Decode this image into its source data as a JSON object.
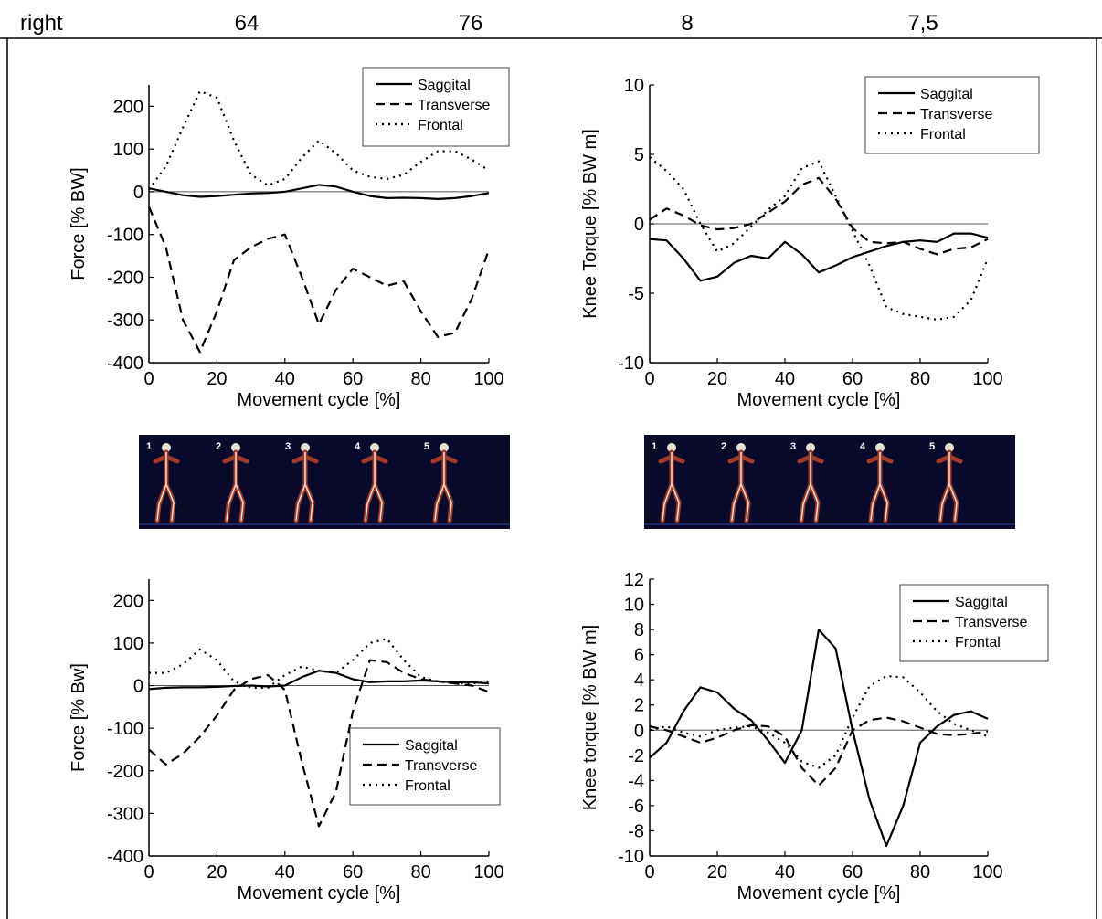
{
  "header_row": [
    "right",
    "64",
    "76",
    "8",
    "7,5"
  ],
  "figure_labels": [
    "1",
    "2",
    "3",
    "4",
    "5"
  ],
  "chart_data": [
    {
      "type": "line",
      "xlabel": "Movement cycle [%]",
      "ylabel": "Force [% BW]",
      "legend": "upper right",
      "x": [
        0,
        5,
        10,
        15,
        20,
        25,
        30,
        35,
        40,
        45,
        50,
        55,
        60,
        65,
        70,
        75,
        80,
        85,
        90,
        95,
        100
      ],
      "xlim": [
        0,
        100
      ],
      "xticks": [
        0,
        20,
        40,
        60,
        80,
        100
      ],
      "ylim": [
        -400,
        250
      ],
      "yticks": [
        -400,
        -300,
        -200,
        -100,
        0,
        100,
        200
      ],
      "series": [
        {
          "name": "Saggital",
          "color": "#000000",
          "dash": "solid",
          "values": [
            8,
            0,
            -8,
            -12,
            -10,
            -7,
            -4,
            -3,
            0,
            8,
            16,
            12,
            0,
            -10,
            -15,
            -14,
            -15,
            -17,
            -15,
            -10,
            -3
          ]
        },
        {
          "name": "Transverse",
          "color": "#000000",
          "dash": "dashed",
          "values": [
            -35,
            -130,
            -300,
            -375,
            -280,
            -160,
            -130,
            -110,
            -100,
            -200,
            -310,
            -230,
            -180,
            -200,
            -220,
            -210,
            -280,
            -340,
            -330,
            -250,
            -135
          ]
        },
        {
          "name": "Frontal",
          "color": "#000000",
          "dash": "dotted",
          "values": [
            5,
            60,
            150,
            235,
            220,
            120,
            40,
            15,
            30,
            80,
            120,
            90,
            50,
            35,
            30,
            40,
            70,
            95,
            95,
            75,
            50
          ]
        }
      ]
    },
    {
      "type": "line",
      "xlabel": "Movement cycle [%]",
      "ylabel": "Knee Torque [% BW m]",
      "legend": "upper right",
      "x": [
        0,
        5,
        10,
        15,
        20,
        25,
        30,
        35,
        40,
        45,
        50,
        55,
        60,
        65,
        70,
        75,
        80,
        85,
        90,
        95,
        100
      ],
      "xlim": [
        0,
        100
      ],
      "xticks": [
        0,
        20,
        40,
        60,
        80,
        100
      ],
      "ylim": [
        -10,
        10
      ],
      "yticks": [
        -10,
        -5,
        0,
        5,
        10
      ],
      "series": [
        {
          "name": "Saggital",
          "color": "#000000",
          "dash": "solid",
          "values": [
            -1.1,
            -1.2,
            -2.5,
            -4.1,
            -3.8,
            -2.8,
            -2.3,
            -2.5,
            -1.3,
            -2.2,
            -3.5,
            -3,
            -2.4,
            -2,
            -1.6,
            -1.3,
            -1.2,
            -1.3,
            -0.7,
            -0.7,
            -1
          ]
        },
        {
          "name": "Transverse",
          "color": "#000000",
          "dash": "dashed",
          "values": [
            0.3,
            1.1,
            0.6,
            -0.1,
            -0.4,
            -0.3,
            0,
            0.8,
            1.6,
            2.8,
            3.3,
            1.8,
            -0.3,
            -1.3,
            -1.4,
            -1.3,
            -1.8,
            -2.2,
            -1.8,
            -1.7,
            -1.1
          ]
        },
        {
          "name": "Frontal",
          "color": "#000000",
          "dash": "dotted",
          "values": [
            4.8,
            3.8,
            2.5,
            0,
            -2,
            -1.4,
            -0.2,
            1,
            2,
            4,
            4.5,
            2,
            -0.5,
            -3,
            -6,
            -6.5,
            -6.7,
            -6.9,
            -6.7,
            -5.5,
            -2.5
          ]
        }
      ]
    },
    {
      "type": "line",
      "xlabel": "Movement cycle [%]",
      "ylabel": "Force [% Bw]",
      "legend": "lower right",
      "x": [
        0,
        5,
        10,
        15,
        20,
        25,
        30,
        35,
        40,
        45,
        50,
        55,
        60,
        65,
        70,
        75,
        80,
        85,
        90,
        95,
        100
      ],
      "xlim": [
        0,
        100
      ],
      "xticks": [
        0,
        20,
        40,
        60,
        80,
        100
      ],
      "ylim": [
        -400,
        250
      ],
      "yticks": [
        -400,
        -300,
        -200,
        -100,
        0,
        100,
        200
      ],
      "series": [
        {
          "name": "Saggital",
          "color": "#000000",
          "dash": "solid",
          "values": [
            -8,
            -5,
            -4,
            -4,
            -3,
            -1,
            0,
            -2,
            0,
            20,
            35,
            30,
            15,
            8,
            10,
            10,
            12,
            10,
            8,
            8,
            5
          ]
        },
        {
          "name": "Transverse",
          "color": "#000000",
          "dash": "dashed",
          "values": [
            -150,
            -185,
            -160,
            -120,
            -70,
            -10,
            15,
            25,
            -10,
            -180,
            -330,
            -250,
            -60,
            60,
            55,
            30,
            15,
            10,
            5,
            0,
            -15
          ]
        },
        {
          "name": "Frontal",
          "color": "#000000",
          "dash": "dotted",
          "values": [
            30,
            30,
            50,
            85,
            60,
            10,
            -5,
            -5,
            25,
            45,
            35,
            30,
            60,
            100,
            110,
            60,
            20,
            10,
            5,
            5,
            10
          ]
        }
      ]
    },
    {
      "type": "line",
      "xlabel": "Movement cycle [%]",
      "ylabel": "Knee torque [% BW m]",
      "legend": "upper right",
      "x": [
        0,
        5,
        10,
        15,
        20,
        25,
        30,
        35,
        40,
        45,
        50,
        55,
        60,
        65,
        70,
        75,
        80,
        85,
        90,
        95,
        100
      ],
      "xlim": [
        0,
        100
      ],
      "xticks": [
        0,
        20,
        40,
        60,
        80,
        100
      ],
      "ylim": [
        -10,
        12
      ],
      "yticks": [
        -10,
        -8,
        -6,
        -4,
        -2,
        0,
        2,
        4,
        6,
        8,
        10,
        12
      ],
      "series": [
        {
          "name": "Saggital",
          "color": "#000000",
          "dash": "solid",
          "values": [
            -2.2,
            -1,
            1.5,
            3.4,
            3,
            1.7,
            0.8,
            -0.8,
            -2.6,
            0,
            8,
            6.5,
            0,
            -5.5,
            -9.2,
            -6,
            -1,
            0.3,
            1.2,
            1.5,
            0.9
          ]
        },
        {
          "name": "Transverse",
          "color": "#000000",
          "dash": "dashed",
          "values": [
            0.3,
            0,
            -0.5,
            -1,
            -0.6,
            0,
            0.4,
            0.3,
            -0.5,
            -3,
            -4.4,
            -3,
            0,
            0.8,
            1,
            0.7,
            0.2,
            -0.3,
            -0.4,
            -0.3,
            -0.1
          ]
        },
        {
          "name": "Frontal",
          "color": "#000000",
          "dash": "dotted",
          "values": [
            0,
            0.3,
            -0.2,
            -0.5,
            0,
            0.2,
            0.3,
            -0.2,
            -1,
            -2.5,
            -3,
            -2,
            1,
            3.5,
            4.3,
            4.2,
            3,
            1.5,
            0.5,
            0,
            -0.5
          ]
        }
      ]
    }
  ]
}
